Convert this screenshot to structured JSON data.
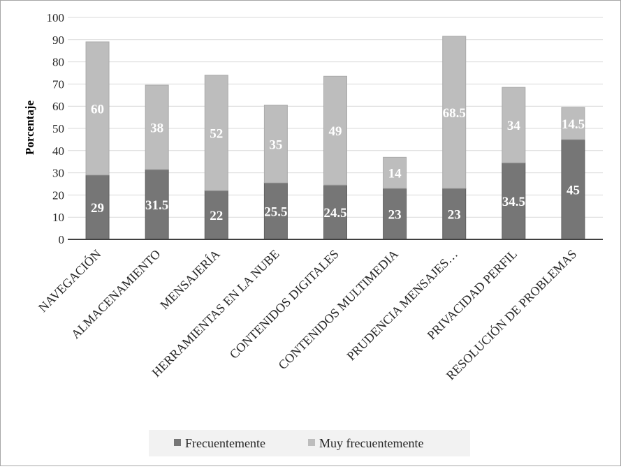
{
  "chart_data": {
    "type": "bar",
    "stacked": true,
    "title": "",
    "xlabel": "",
    "ylabel": "Porcentaje",
    "ylim": [
      0,
      100
    ],
    "yticks": [
      0,
      10,
      20,
      30,
      40,
      50,
      60,
      70,
      80,
      90,
      100
    ],
    "grid": true,
    "legend_position": "bottom",
    "categories": [
      "NAVEGACIÓN",
      "ALMACENAMIENTO",
      "MENSAJERÍA",
      "HERRAMIENTAS EN LA NUBE",
      "CONTENIDOS DIGITALES",
      "CONTENIDOS MULTIMEDIA",
      "PRUDENCIA MENSAJES…",
      "PRIVACIDAD PERFIL",
      "RESOLUCIÓN DE PROBLEMAS"
    ],
    "series": [
      {
        "name": "Frecuentemente",
        "color": "#767676",
        "values": [
          29,
          31.5,
          22,
          25.5,
          24.5,
          23,
          23,
          34.5,
          45
        ]
      },
      {
        "name": "Muy frecuentemente",
        "color": "#bdbdbd",
        "values": [
          60,
          38,
          52,
          35,
          49,
          14,
          68.5,
          34,
          14.5
        ]
      }
    ]
  }
}
